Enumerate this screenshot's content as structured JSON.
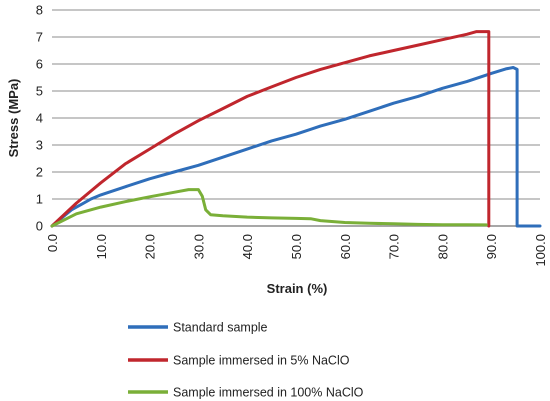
{
  "chart_data": {
    "type": "line",
    "xlabel": "Strain (%)",
    "ylabel": "Stress (MPa)",
    "xlim": [
      0,
      100
    ],
    "ylim": [
      0,
      8
    ],
    "x_ticks": [
      "0.0",
      "10.0",
      "20.0",
      "30.0",
      "40.0",
      "50.0",
      "60.0",
      "70.0",
      "80.0",
      "90.0",
      "100.0"
    ],
    "y_ticks": [
      "0",
      "1",
      "2",
      "3",
      "4",
      "5",
      "6",
      "7",
      "8"
    ],
    "grid": "horizontal",
    "legend_position": "bottom",
    "series": [
      {
        "name": "Standard sample",
        "color": "#2f6eba",
        "points": [
          [
            0,
            0
          ],
          [
            2,
            0.3
          ],
          [
            4,
            0.6
          ],
          [
            6,
            0.8
          ],
          [
            8,
            1.0
          ],
          [
            10,
            1.15
          ],
          [
            15,
            1.45
          ],
          [
            20,
            1.75
          ],
          [
            25,
            2.0
          ],
          [
            30,
            2.25
          ],
          [
            35,
            2.55
          ],
          [
            40,
            2.85
          ],
          [
            45,
            3.15
          ],
          [
            50,
            3.4
          ],
          [
            55,
            3.7
          ],
          [
            60,
            3.95
          ],
          [
            65,
            4.25
          ],
          [
            70,
            4.55
          ],
          [
            75,
            4.8
          ],
          [
            80,
            5.1
          ],
          [
            85,
            5.35
          ],
          [
            90,
            5.65
          ],
          [
            93,
            5.82
          ],
          [
            94.5,
            5.87
          ],
          [
            95.3,
            5.8
          ],
          [
            95.3,
            0.0
          ],
          [
            100,
            0.0
          ]
        ]
      },
      {
        "name": "Sample immersed in 5% NaClO",
        "color": "#c0262d",
        "points": [
          [
            0,
            0
          ],
          [
            5,
            0.85
          ],
          [
            10,
            1.6
          ],
          [
            15,
            2.3
          ],
          [
            20,
            2.85
          ],
          [
            25,
            3.4
          ],
          [
            30,
            3.9
          ],
          [
            35,
            4.35
          ],
          [
            40,
            4.8
          ],
          [
            45,
            5.15
          ],
          [
            50,
            5.5
          ],
          [
            55,
            5.8
          ],
          [
            60,
            6.05
          ],
          [
            65,
            6.3
          ],
          [
            70,
            6.5
          ],
          [
            75,
            6.7
          ],
          [
            80,
            6.9
          ],
          [
            85,
            7.1
          ],
          [
            87,
            7.2
          ],
          [
            89.5,
            7.2
          ],
          [
            89.5,
            0.0
          ]
        ]
      },
      {
        "name": "Sample immersed in 100% NaClO",
        "color": "#7aaf38",
        "points": [
          [
            0,
            0
          ],
          [
            5,
            0.45
          ],
          [
            10,
            0.7
          ],
          [
            15,
            0.9
          ],
          [
            20,
            1.08
          ],
          [
            25,
            1.25
          ],
          [
            28,
            1.35
          ],
          [
            30,
            1.35
          ],
          [
            30.8,
            1.1
          ],
          [
            31.5,
            0.6
          ],
          [
            32.5,
            0.42
          ],
          [
            35,
            0.38
          ],
          [
            40,
            0.33
          ],
          [
            45,
            0.3
          ],
          [
            50,
            0.28
          ],
          [
            53,
            0.27
          ],
          [
            55,
            0.2
          ],
          [
            60,
            0.13
          ],
          [
            65,
            0.1
          ],
          [
            70,
            0.08
          ],
          [
            75,
            0.06
          ],
          [
            80,
            0.05
          ],
          [
            85,
            0.05
          ],
          [
            89,
            0.04
          ]
        ]
      }
    ]
  }
}
